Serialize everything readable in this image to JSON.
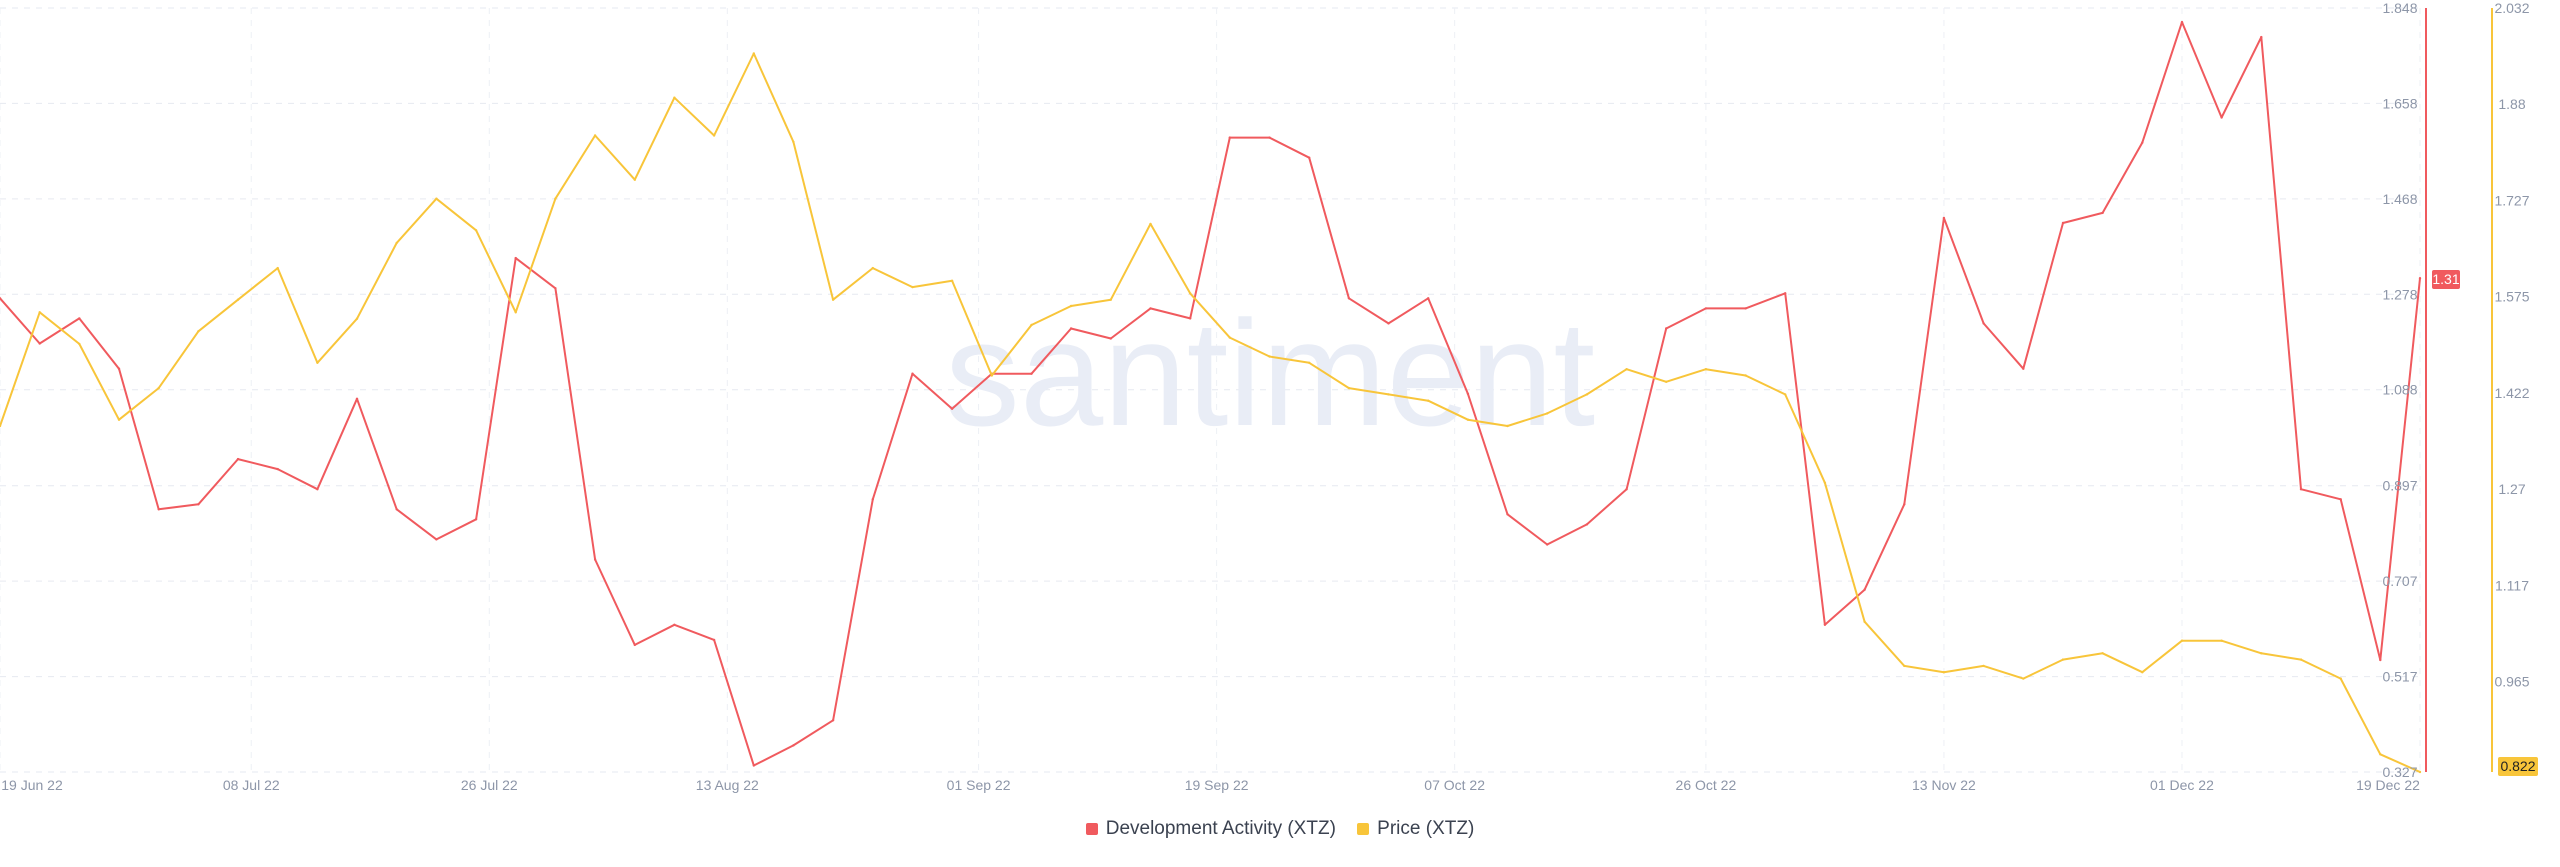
{
  "chart_data": {
    "type": "line",
    "watermark": "santiment",
    "x_ticks": [
      "19 Jun 22",
      "08 Jul 22",
      "26 Jul 22",
      "13 Aug 22",
      "01 Sep 22",
      "19 Sep 22",
      "07 Oct 22",
      "26 Oct 22",
      "13 Nov 22",
      "01 Dec 22",
      "19 Dec 22"
    ],
    "xlim": [
      "2022-06-19",
      "2022-12-19"
    ],
    "grid": true,
    "legend_placement": "bottom-center",
    "axes": {
      "left": {
        "ylim": [
          0.327,
          1.848
        ],
        "ticks": [
          "1.848",
          "1.658",
          "1.468",
          "1.278",
          "1.088",
          "0.897",
          "0.707",
          "0.517",
          "0.327"
        ],
        "color": "#f05a5e"
      },
      "right": {
        "ylim": [
          0.822,
          2.032
        ],
        "ticks": [
          "2.032",
          "1.88",
          "1.727",
          "1.575",
          "1.422",
          "1.27",
          "1.117",
          "0.965"
        ],
        "color": "#f8c53a"
      }
    },
    "last_values": {
      "development_activity": "1.31",
      "price": "0.822"
    },
    "series": [
      {
        "name": "Development Activity (XTZ)",
        "color": "#f05a5e",
        "axis": "left",
        "x": [
          "2022-06-19",
          "2022-06-22",
          "2022-06-25",
          "2022-06-28",
          "2022-07-01",
          "2022-07-04",
          "2022-07-07",
          "2022-07-10",
          "2022-07-13",
          "2022-07-16",
          "2022-07-19",
          "2022-07-22",
          "2022-07-25",
          "2022-07-28",
          "2022-07-31",
          "2022-08-03",
          "2022-08-06",
          "2022-08-09",
          "2022-08-12",
          "2022-08-15",
          "2022-08-18",
          "2022-08-21",
          "2022-08-24",
          "2022-08-27",
          "2022-08-30",
          "2022-09-02",
          "2022-09-05",
          "2022-09-08",
          "2022-09-11",
          "2022-09-14",
          "2022-09-17",
          "2022-09-20",
          "2022-09-23",
          "2022-09-26",
          "2022-09-29",
          "2022-10-02",
          "2022-10-05",
          "2022-10-08",
          "2022-10-11",
          "2022-10-14",
          "2022-10-17",
          "2022-10-20",
          "2022-10-23",
          "2022-10-26",
          "2022-10-29",
          "2022-11-01",
          "2022-11-04",
          "2022-11-07",
          "2022-11-10",
          "2022-11-13",
          "2022-11-16",
          "2022-11-19",
          "2022-11-22",
          "2022-11-25",
          "2022-11-28",
          "2022-12-01",
          "2022-12-04",
          "2022-12-07",
          "2022-12-10",
          "2022-12-13",
          "2022-12-16",
          "2022-12-19"
        ],
        "values": [
          1.27,
          1.18,
          1.23,
          1.13,
          0.85,
          0.86,
          0.95,
          0.93,
          0.89,
          1.07,
          0.85,
          0.79,
          0.83,
          1.35,
          1.29,
          0.75,
          0.58,
          0.62,
          0.59,
          0.34,
          0.38,
          0.43,
          0.87,
          1.12,
          1.05,
          1.12,
          1.12,
          1.21,
          1.19,
          1.25,
          1.23,
          1.59,
          1.59,
          1.55,
          1.27,
          1.22,
          1.27,
          1.08,
          0.84,
          0.78,
          0.82,
          0.89,
          1.21,
          1.25,
          1.25,
          1.28,
          0.62,
          0.69,
          0.86,
          1.43,
          1.22,
          1.13,
          1.42,
          1.44,
          1.58,
          1.82,
          1.63,
          1.79,
          0.89,
          0.87,
          0.55,
          1.31
        ]
      },
      {
        "name": "Price (XTZ)",
        "color": "#f8c53a",
        "axis": "right",
        "x": [
          "2022-06-19",
          "2022-06-22",
          "2022-06-25",
          "2022-06-28",
          "2022-07-01",
          "2022-07-04",
          "2022-07-07",
          "2022-07-10",
          "2022-07-13",
          "2022-07-16",
          "2022-07-19",
          "2022-07-22",
          "2022-07-25",
          "2022-07-28",
          "2022-07-31",
          "2022-08-03",
          "2022-08-06",
          "2022-08-09",
          "2022-08-12",
          "2022-08-15",
          "2022-08-18",
          "2022-08-21",
          "2022-08-24",
          "2022-08-27",
          "2022-08-30",
          "2022-09-02",
          "2022-09-05",
          "2022-09-08",
          "2022-09-11",
          "2022-09-14",
          "2022-09-17",
          "2022-09-20",
          "2022-09-23",
          "2022-09-26",
          "2022-09-29",
          "2022-10-02",
          "2022-10-05",
          "2022-10-08",
          "2022-10-11",
          "2022-10-14",
          "2022-10-17",
          "2022-10-20",
          "2022-10-23",
          "2022-10-26",
          "2022-10-29",
          "2022-11-01",
          "2022-11-04",
          "2022-11-07",
          "2022-11-10",
          "2022-11-13",
          "2022-11-16",
          "2022-11-19",
          "2022-11-22",
          "2022-11-25",
          "2022-11-28",
          "2022-12-01",
          "2022-12-04",
          "2022-12-07",
          "2022-12-10",
          "2022-12-13",
          "2022-12-16",
          "2022-12-19"
        ],
        "values": [
          1.37,
          1.55,
          1.5,
          1.38,
          1.43,
          1.52,
          1.57,
          1.62,
          1.47,
          1.54,
          1.66,
          1.73,
          1.68,
          1.55,
          1.73,
          1.83,
          1.76,
          1.89,
          1.83,
          1.96,
          1.82,
          1.57,
          1.62,
          1.59,
          1.6,
          1.45,
          1.53,
          1.56,
          1.57,
          1.69,
          1.58,
          1.51,
          1.48,
          1.47,
          1.43,
          1.42,
          1.41,
          1.38,
          1.37,
          1.39,
          1.42,
          1.46,
          1.44,
          1.46,
          1.45,
          1.42,
          1.28,
          1.06,
          0.99,
          0.98,
          0.99,
          0.97,
          1.0,
          1.01,
          0.98,
          1.03,
          1.03,
          1.01,
          1.0,
          0.97,
          0.85,
          0.822
        ]
      }
    ]
  }
}
